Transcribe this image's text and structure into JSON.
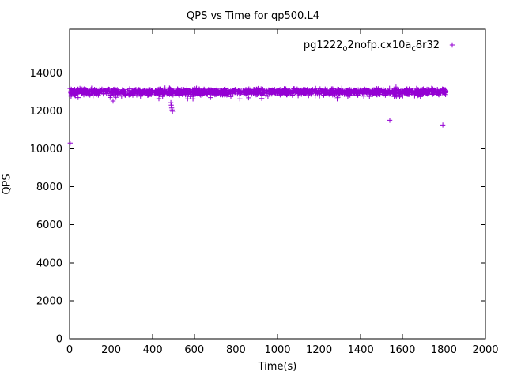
{
  "chart_data": {
    "type": "scatter",
    "title": "QPS vs Time for qp500.L4",
    "xlabel": "Time(s)",
    "ylabel": "QPS",
    "xlim": [
      0,
      2000
    ],
    "ylim": [
      0,
      16300
    ],
    "xticks": [
      0,
      200,
      400,
      600,
      800,
      1000,
      1200,
      1400,
      1600,
      1800,
      2000
    ],
    "yticks": [
      0,
      2000,
      4000,
      6000,
      8000,
      10000,
      12000,
      14000
    ],
    "grid": false,
    "legend_position": "top-right-inside",
    "series": [
      {
        "name": "pg1222_o2nofp.cx10a_c8r32",
        "label_parts": [
          {
            "text": "pg1222"
          },
          {
            "sub": "o"
          },
          {
            "text": "2nofp.cx10a"
          },
          {
            "sub": "c"
          },
          {
            "text": "8r32"
          }
        ],
        "color": "#9400d3",
        "marker": "plus",
        "band": {
          "description": "dense steady band of QPS samples",
          "x_start": 0,
          "x_end": 1810,
          "n_points": 1600,
          "y_mean": 13000,
          "y_spread": 330,
          "seed": 1234
        },
        "outliers": [
          [
            3,
            10300
          ],
          [
            487,
            12430
          ],
          [
            489,
            12300
          ],
          [
            491,
            12150
          ],
          [
            493,
            12050
          ],
          [
            495,
            11980
          ],
          [
            1540,
            11500
          ],
          [
            1795,
            11250
          ]
        ]
      }
    ]
  }
}
